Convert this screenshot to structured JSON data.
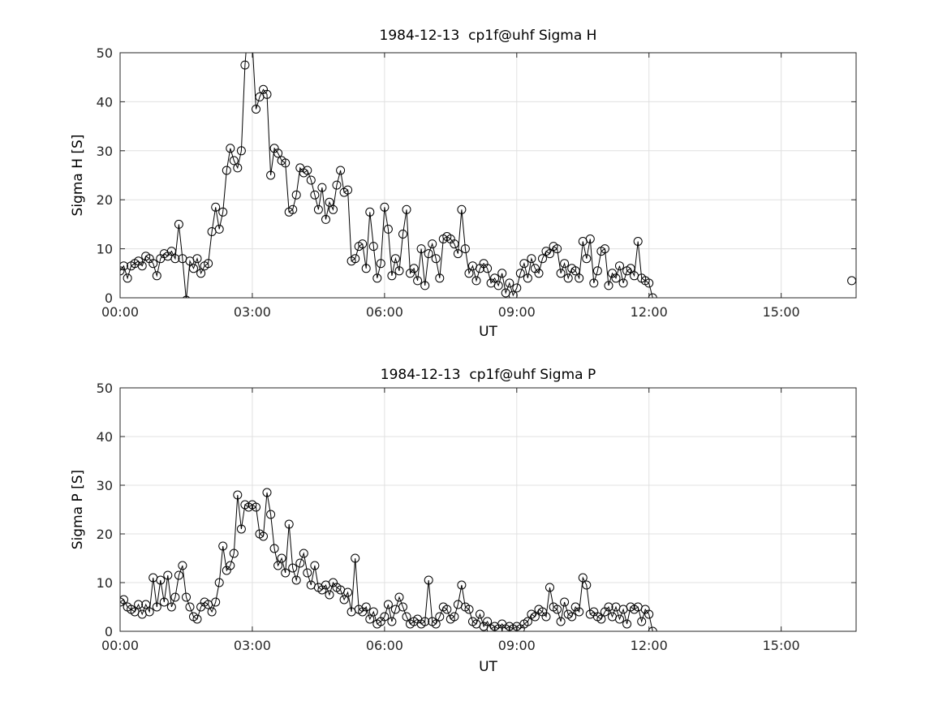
{
  "figure": {
    "background": "#ffffff",
    "axis_color": "#262626",
    "grid_color": "#e0e0e0",
    "data_color": "#000000"
  },
  "chart_data": [
    {
      "id": "sigma_h",
      "type": "line",
      "title": "1984-12-13  cp1f@uhf Sigma H",
      "xlabel": "UT",
      "ylabel": "Sigma H [S]",
      "xlim_hours": [
        0,
        16.7
      ],
      "ylim": [
        0,
        50
      ],
      "grid": true,
      "legend": "none",
      "xticks": [
        {
          "hours": 0,
          "label": "00:00"
        },
        {
          "hours": 3,
          "label": "03:00"
        },
        {
          "hours": 6,
          "label": "06:00"
        },
        {
          "hours": 9,
          "label": "09:00"
        },
        {
          "hours": 12,
          "label": "12:00"
        },
        {
          "hours": 15,
          "label": "15:00"
        }
      ],
      "yticks": [
        {
          "value": 0,
          "label": "0"
        },
        {
          "value": 10,
          "label": "10"
        },
        {
          "value": 20,
          "label": "20"
        },
        {
          "value": 30,
          "label": "30"
        },
        {
          "value": 40,
          "label": "40"
        },
        {
          "value": 50,
          "label": "50"
        }
      ],
      "series": {
        "name": "Sigma H",
        "marker": "open-circle",
        "color": "#000000",
        "start_hour": 0,
        "interval_minutes": 5,
        "values": [
          5.5,
          6.5,
          4,
          6.5,
          7,
          7.5,
          6.5,
          8.5,
          8,
          7,
          4.5,
          8,
          9,
          8.5,
          9.5,
          8,
          15,
          8,
          -0.5,
          7.5,
          6,
          8,
          5,
          6.5,
          7,
          13.5,
          18.5,
          14,
          17.5,
          26,
          30.5,
          28,
          26.5,
          30,
          47.5,
          57,
          52,
          38.5,
          41,
          42.5,
          41.5,
          25,
          30.5,
          29.5,
          28,
          27.5,
          17.5,
          18,
          21,
          26.5,
          25.5,
          26,
          24,
          21,
          18,
          22.5,
          16,
          19.5,
          18,
          23,
          26,
          21.5,
          22,
          7.5,
          8,
          10.5,
          11,
          6,
          17.5,
          10.5,
          4,
          7,
          18.5,
          14,
          4.5,
          8,
          5.5,
          13,
          18,
          5,
          6,
          3.5,
          10,
          2.5,
          9,
          11,
          8,
          4,
          12,
          12.5,
          12,
          11,
          9,
          18,
          10,
          5,
          6.5,
          3.5,
          6,
          7,
          6,
          3,
          4,
          2.5,
          5,
          1,
          3,
          0.5,
          2,
          5,
          7,
          4,
          8,
          6,
          5,
          8,
          9.5,
          9,
          10.5,
          10,
          5,
          7,
          4,
          6,
          5.5,
          4,
          11.5,
          8,
          12,
          3,
          5.5,
          9.5,
          10,
          2.5,
          5,
          4,
          6.5,
          3,
          5.5,
          6,
          4.5,
          11.5,
          4,
          3.5,
          3,
          0
        ]
      },
      "isolated_points": [
        {
          "hour": 16.6,
          "value": 3.5
        }
      ]
    },
    {
      "id": "sigma_p",
      "type": "line",
      "title": "1984-12-13  cp1f@uhf Sigma P",
      "xlabel": "UT",
      "ylabel": "Sigma P [S]",
      "xlim_hours": [
        0,
        16.7
      ],
      "ylim": [
        0,
        50
      ],
      "grid": true,
      "legend": "none",
      "xticks": [
        {
          "hours": 0,
          "label": "00:00"
        },
        {
          "hours": 3,
          "label": "03:00"
        },
        {
          "hours": 6,
          "label": "06:00"
        },
        {
          "hours": 9,
          "label": "09:00"
        },
        {
          "hours": 12,
          "label": "12:00"
        },
        {
          "hours": 15,
          "label": "15:00"
        }
      ],
      "yticks": [
        {
          "value": 0,
          "label": "0"
        },
        {
          "value": 10,
          "label": "10"
        },
        {
          "value": 20,
          "label": "20"
        },
        {
          "value": 30,
          "label": "30"
        },
        {
          "value": 40,
          "label": "40"
        },
        {
          "value": 50,
          "label": "50"
        }
      ],
      "series": {
        "name": "Sigma P",
        "marker": "open-circle",
        "color": "#000000",
        "start_hour": 0,
        "interval_minutes": 5,
        "values": [
          6,
          6.5,
          5,
          4.5,
          4,
          5.5,
          3.5,
          5.5,
          4,
          11,
          5,
          10.5,
          6,
          11.5,
          5,
          7,
          11.5,
          13.5,
          7,
          5,
          3,
          2.5,
          5,
          6,
          5.5,
          4,
          6,
          10,
          17.5,
          12.5,
          13.5,
          16,
          28,
          21,
          26,
          25.5,
          26,
          25.5,
          20,
          19.5,
          28.5,
          24,
          17,
          13.5,
          15,
          12,
          22,
          13,
          10.5,
          14,
          16,
          12,
          9.5,
          13.5,
          9,
          8.5,
          9.5,
          7.5,
          10,
          9,
          8.5,
          6.5,
          8,
          4,
          15,
          4.5,
          4,
          5,
          2.5,
          4,
          1.5,
          2,
          3,
          5.5,
          2,
          4.5,
          7,
          5,
          3,
          1.5,
          2,
          2.5,
          1.5,
          2,
          10.5,
          2,
          1.5,
          3,
          5,
          4.5,
          2.5,
          3,
          5.5,
          9.5,
          5,
          4.5,
          2,
          1.5,
          3.5,
          1,
          2,
          0.5,
          1,
          0.5,
          1.5,
          0.5,
          1,
          0.5,
          1,
          0.5,
          1.5,
          2,
          3.5,
          3,
          4.5,
          4,
          3,
          9,
          5,
          4.5,
          2,
          6,
          3.5,
          3,
          5,
          4,
          11,
          9.5,
          3.5,
          4,
          3,
          2.5,
          4,
          5,
          3,
          5,
          2.5,
          4.5,
          1.5,
          5,
          4.5,
          5,
          2,
          4.5,
          3.5,
          0
        ]
      },
      "isolated_points": []
    }
  ]
}
